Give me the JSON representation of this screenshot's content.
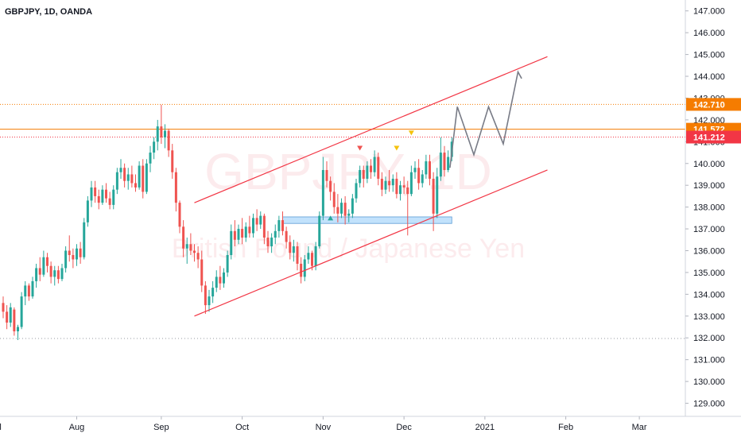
{
  "symbol_title": "GBPJPY, 1D, OANDA",
  "watermark": {
    "symbol": "GBPJPY, 1D",
    "description": "British Pound / Japanese Yen"
  },
  "colors": {
    "up": "#26a69a",
    "down": "#ef5350",
    "level": "#f57c00",
    "channel": "#f23645",
    "projection": "#787b86",
    "zone": "#90caf9",
    "last_price": "#f23645"
  },
  "chart_data": {
    "type": "candlestick",
    "y_axis": {
      "min": 128.4,
      "max": 147.5,
      "tick_labels": [
        "129.000",
        "130.000",
        "131.000",
        "132.000",
        "133.000",
        "134.000",
        "135.000",
        "136.000",
        "137.000",
        "138.000",
        "139.000",
        "140.000",
        "141.000",
        "142.000",
        "143.000",
        "144.000",
        "145.000",
        "146.000",
        "147.000"
      ]
    },
    "x_axis": {
      "labels": [
        {
          "text": "Jul",
          "index": -2
        },
        {
          "text": "Aug",
          "index": 20
        },
        {
          "text": "Sep",
          "index": 43
        },
        {
          "text": "Oct",
          "index": 65
        },
        {
          "text": "Nov",
          "index": 87
        },
        {
          "text": "Dec",
          "index": 109
        },
        {
          "text": "2021",
          "index": 131
        },
        {
          "text": "Feb",
          "index": 153
        },
        {
          "text": "Mar",
          "index": 173
        }
      ]
    },
    "candles": [
      [
        133.6,
        133.9,
        132.9,
        133.2
      ],
      [
        133.2,
        133.5,
        132.4,
        132.7
      ],
      [
        132.7,
        133.6,
        132.5,
        133.4
      ],
      [
        133.3,
        133.4,
        132.1,
        132.3
      ],
      [
        132.3,
        132.6,
        131.9,
        132.5
      ],
      [
        132.5,
        134.1,
        132.4,
        133.9
      ],
      [
        133.9,
        134.6,
        133.5,
        134.4
      ],
      [
        134.4,
        134.5,
        133.7,
        133.9
      ],
      [
        133.9,
        134.8,
        133.8,
        134.6
      ],
      [
        134.6,
        135.4,
        134.3,
        135.2
      ],
      [
        135.2,
        135.7,
        134.6,
        134.9
      ],
      [
        134.9,
        136.0,
        134.8,
        135.7
      ],
      [
        135.7,
        135.9,
        135.0,
        135.3
      ],
      [
        135.3,
        135.5,
        134.5,
        134.8
      ],
      [
        134.8,
        135.3,
        134.4,
        135.1
      ],
      [
        135.1,
        135.3,
        134.5,
        134.7
      ],
      [
        134.7,
        135.4,
        134.6,
        135.2
      ],
      [
        135.2,
        136.2,
        135.0,
        136.0
      ],
      [
        136.0,
        136.7,
        135.5,
        135.8
      ],
      [
        135.8,
        136.1,
        135.2,
        135.6
      ],
      [
        135.6,
        136.3,
        135.3,
        136.1
      ],
      [
        136.1,
        136.4,
        135.4,
        135.7
      ],
      [
        135.7,
        137.5,
        135.6,
        137.3
      ],
      [
        137.3,
        138.5,
        137.1,
        138.3
      ],
      [
        138.3,
        139.2,
        138.0,
        138.9
      ],
      [
        138.9,
        139.2,
        138.2,
        138.5
      ],
      [
        138.5,
        138.8,
        137.9,
        138.2
      ],
      [
        138.2,
        139.0,
        138.1,
        138.8
      ],
      [
        138.8,
        139.1,
        138.2,
        138.4
      ],
      [
        138.4,
        138.7,
        137.9,
        138.1
      ],
      [
        138.1,
        139.0,
        137.9,
        138.8
      ],
      [
        138.8,
        139.8,
        138.6,
        139.6
      ],
      [
        139.6,
        140.2,
        139.3,
        139.8
      ],
      [
        139.8,
        140.0,
        138.9,
        139.2
      ],
      [
        139.2,
        139.8,
        138.8,
        139.5
      ],
      [
        139.5,
        139.9,
        138.9,
        139.1
      ],
      [
        139.1,
        139.5,
        138.7,
        138.9
      ],
      [
        138.9,
        140.1,
        138.8,
        139.9
      ],
      [
        139.9,
        140.2,
        138.4,
        138.7
      ],
      [
        138.7,
        140.2,
        138.6,
        140.0
      ],
      [
        140.0,
        140.8,
        139.6,
        140.5
      ],
      [
        140.5,
        141.2,
        140.2,
        141.0
      ],
      [
        141.0,
        142.0,
        140.6,
        141.7
      ],
      [
        141.7,
        142.7,
        140.9,
        141.2
      ],
      [
        141.2,
        141.8,
        140.7,
        141.5
      ],
      [
        141.5,
        141.6,
        140.3,
        140.6
      ],
      [
        140.6,
        140.9,
        139.3,
        139.6
      ],
      [
        139.6,
        139.8,
        137.8,
        138.2
      ],
      [
        138.2,
        138.3,
        136.8,
        137.1
      ],
      [
        137.1,
        137.4,
        135.7,
        136.1
      ],
      [
        136.1,
        136.6,
        135.4,
        136.3
      ],
      [
        136.3,
        136.8,
        135.8,
        136.0
      ],
      [
        136.0,
        136.3,
        135.5,
        135.9
      ],
      [
        135.9,
        136.2,
        135.2,
        135.6
      ],
      [
        135.6,
        136.0,
        134.1,
        134.4
      ],
      [
        134.4,
        134.6,
        133.1,
        133.5
      ],
      [
        133.5,
        134.2,
        133.2,
        133.9
      ],
      [
        133.9,
        134.6,
        133.6,
        134.3
      ],
      [
        134.3,
        135.1,
        134.1,
        134.8
      ],
      [
        134.8,
        135.3,
        134.2,
        134.5
      ],
      [
        134.5,
        135.2,
        134.3,
        135.0
      ],
      [
        135.0,
        136.0,
        134.8,
        135.8
      ],
      [
        135.8,
        137.2,
        135.6,
        136.9
      ],
      [
        136.9,
        137.4,
        136.2,
        136.5
      ],
      [
        136.5,
        137.2,
        136.3,
        137.0
      ],
      [
        137.0,
        137.5,
        136.3,
        136.6
      ],
      [
        136.6,
        137.3,
        136.4,
        137.1
      ],
      [
        137.1,
        137.6,
        136.6,
        136.8
      ],
      [
        136.8,
        137.7,
        136.6,
        137.5
      ],
      [
        137.5,
        137.9,
        136.9,
        137.2
      ],
      [
        137.2,
        137.8,
        137.0,
        137.6
      ],
      [
        137.6,
        137.7,
        136.3,
        136.6
      ],
      [
        136.6,
        136.9,
        135.9,
        136.2
      ],
      [
        136.2,
        136.8,
        135.9,
        136.6
      ],
      [
        136.6,
        137.2,
        136.3,
        136.9
      ],
      [
        136.9,
        137.6,
        136.6,
        137.4
      ],
      [
        137.4,
        137.8,
        136.7,
        136.9
      ],
      [
        136.9,
        137.1,
        136.1,
        136.4
      ],
      [
        136.4,
        136.7,
        135.6,
        135.9
      ],
      [
        135.9,
        136.5,
        135.5,
        136.2
      ],
      [
        136.2,
        136.4,
        135.1,
        135.4
      ],
      [
        135.4,
        135.7,
        134.5,
        134.8
      ],
      [
        134.8,
        135.8,
        134.6,
        135.6
      ],
      [
        135.6,
        136.2,
        135.4,
        135.9
      ],
      [
        135.9,
        136.0,
        135.1,
        135.3
      ],
      [
        135.3,
        136.4,
        135.1,
        136.2
      ],
      [
        136.2,
        137.8,
        136.1,
        137.6
      ],
      [
        137.6,
        140.3,
        137.4,
        139.7
      ],
      [
        139.7,
        140.1,
        138.9,
        139.2
      ],
      [
        139.2,
        139.4,
        138.3,
        138.7
      ],
      [
        138.7,
        139.1,
        137.7,
        138.0
      ],
      [
        138.0,
        138.6,
        137.3,
        137.7
      ],
      [
        137.7,
        138.4,
        137.5,
        138.2
      ],
      [
        138.2,
        138.5,
        137.2,
        137.6
      ],
      [
        137.6,
        137.9,
        137.3,
        137.7
      ],
      [
        137.7,
        138.6,
        137.5,
        138.4
      ],
      [
        138.4,
        139.3,
        138.2,
        139.1
      ],
      [
        139.1,
        139.9,
        138.9,
        139.7
      ],
      [
        139.7,
        139.9,
        138.9,
        139.3
      ],
      [
        139.3,
        140.1,
        139.1,
        139.9
      ],
      [
        139.9,
        140.2,
        139.3,
        139.6
      ],
      [
        139.6,
        140.6,
        139.4,
        140.3
      ],
      [
        140.3,
        140.5,
        139.0,
        139.3
      ],
      [
        139.3,
        139.6,
        138.5,
        138.8
      ],
      [
        138.8,
        139.4,
        138.6,
        139.2
      ],
      [
        139.2,
        139.7,
        138.7,
        139.0
      ],
      [
        139.0,
        139.5,
        138.7,
        139.3
      ],
      [
        139.3,
        139.6,
        138.4,
        138.6
      ],
      [
        138.6,
        139.2,
        138.3,
        139.0
      ],
      [
        139.0,
        139.4,
        138.6,
        138.9
      ],
      [
        138.9,
        139.2,
        136.7,
        138.6
      ],
      [
        138.6,
        139.9,
        138.5,
        139.6
      ],
      [
        139.6,
        140.1,
        139.3,
        139.8
      ],
      [
        139.8,
        140.2,
        138.8,
        139.1
      ],
      [
        139.1,
        139.7,
        138.9,
        139.5
      ],
      [
        139.5,
        140.4,
        139.3,
        140.1
      ],
      [
        140.1,
        140.4,
        139.0,
        139.3
      ],
      [
        139.3,
        139.6,
        136.9,
        137.7
      ],
      [
        137.7,
        139.8,
        137.5,
        139.4
      ],
      [
        139.4,
        141.2,
        139.2,
        140.5
      ],
      [
        140.5,
        140.8,
        139.4,
        139.7
      ],
      [
        139.7,
        140.6,
        139.6,
        140.3
      ],
      [
        140.3,
        141.2,
        140.1,
        141.0
      ]
    ],
    "levels": [
      {
        "price": 142.71,
        "label": "142.710",
        "style": "dotted",
        "band": true
      },
      {
        "price": 141.572,
        "label": "141.572",
        "style": "solid",
        "band": true
      },
      {
        "price": 141.212,
        "label": "141.212",
        "style": "dotted-red",
        "band": false
      },
      {
        "price": 131.97,
        "label": "",
        "style": "dotted-grey",
        "band": false
      }
    ],
    "channel": {
      "upper": [
        [
          52,
          138.2
        ],
        [
          148,
          144.9
        ]
      ],
      "lower": [
        [
          52,
          133.0
        ],
        [
          148,
          139.7
        ]
      ]
    },
    "zone": {
      "x0": 76,
      "x1": 122,
      "y0": 137.25,
      "y1": 137.55
    },
    "projection": [
      [
        121.5,
        139.8
      ],
      [
        123.5,
        142.6
      ],
      [
        128,
        140.4
      ],
      [
        132,
        142.6
      ],
      [
        136,
        140.9
      ],
      [
        140,
        144.2
      ],
      [
        141,
        143.9
      ]
    ],
    "markers": [
      {
        "index": 97,
        "price": 140.7,
        "color": "#ef5350",
        "dir": "down"
      },
      {
        "index": 107,
        "price": 140.7,
        "color": "#f4c20d",
        "dir": "down"
      },
      {
        "index": 111,
        "price": 141.4,
        "color": "#f4c20d",
        "dir": "down"
      },
      {
        "index": 89,
        "price": 137.5,
        "color": "#26a69a",
        "dir": "up"
      }
    ]
  }
}
